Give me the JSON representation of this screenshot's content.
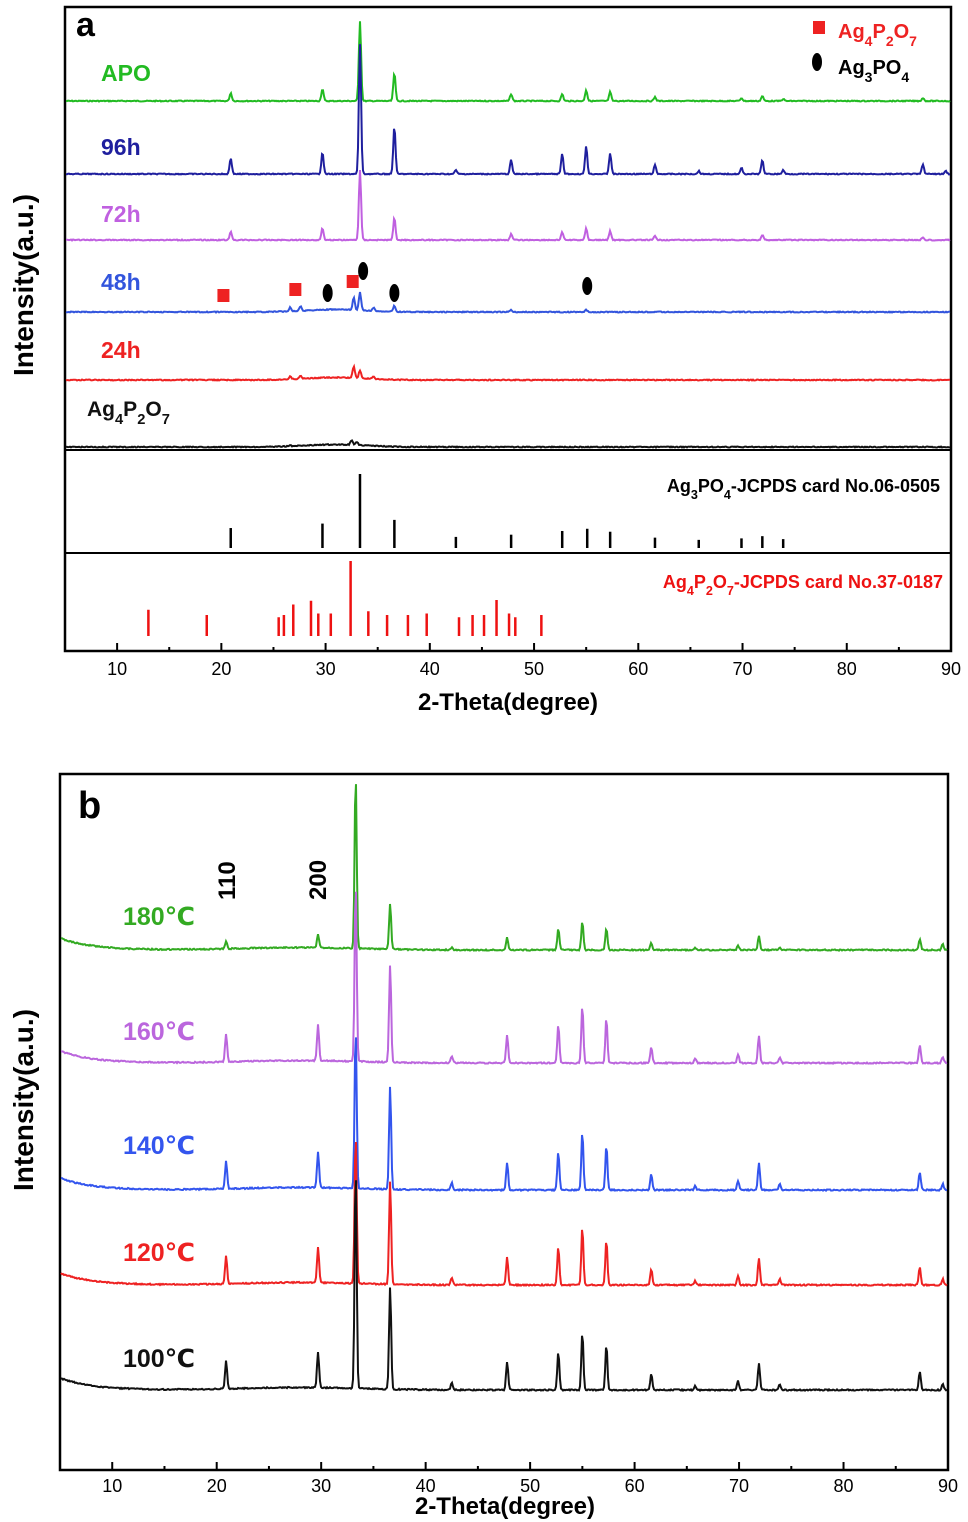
{
  "chart_data": [
    {
      "panel": "a",
      "type": "line",
      "xlabel": "2-Theta(degree)",
      "ylabel": "Intensity(a.u.)",
      "xlim": [
        5,
        90
      ],
      "xticks": [
        10,
        20,
        30,
        40,
        50,
        60,
        70,
        80,
        90
      ],
      "colors": {
        "APO": "#22bb22",
        "96h": "#1f1f9e",
        "72h": "#c060e0",
        "48h": "#3355dd",
        "24h": "#ee2222",
        "Ag4P2O7": "#111111",
        "ref_apo": "#000000",
        "ref_p2o7": "#ee1111"
      },
      "series": [
        {
          "name": "APO",
          "label_parts": [
            [
              "APO",
              ""
            ]
          ],
          "baseline": 0,
          "peaks": [
            [
              20.9,
              8
            ],
            [
              29.7,
              12
            ],
            [
              33.3,
              80
            ],
            [
              36.6,
              28
            ],
            [
              47.8,
              7
            ],
            [
              52.7,
              7
            ],
            [
              55.0,
              11
            ],
            [
              57.3,
              9
            ],
            [
              61.6,
              4
            ],
            [
              69.9,
              3
            ],
            [
              71.9,
              5
            ],
            [
              73.9,
              2
            ],
            [
              87.3,
              3
            ]
          ]
        },
        {
          "name": "96h",
          "label_parts": [
            [
              "96h",
              ""
            ]
          ],
          "baseline": 0,
          "peaks": [
            [
              20.9,
              16
            ],
            [
              29.7,
              22
            ],
            [
              33.3,
              130
            ],
            [
              36.6,
              48
            ],
            [
              42.5,
              4
            ],
            [
              47.8,
              14
            ],
            [
              52.7,
              20
            ],
            [
              55.0,
              28
            ],
            [
              57.3,
              21
            ],
            [
              61.6,
              9
            ],
            [
              65.8,
              3
            ],
            [
              69.9,
              6
            ],
            [
              71.9,
              14
            ],
            [
              73.9,
              4
            ],
            [
              87.3,
              10
            ],
            [
              89.5,
              3
            ]
          ]
        },
        {
          "name": "72h",
          "label_parts": [
            [
              "72h",
              ""
            ]
          ],
          "baseline": 0,
          "peaks": [
            [
              20.9,
              8
            ],
            [
              29.7,
              12
            ],
            [
              33.3,
              70
            ],
            [
              36.6,
              22
            ],
            [
              47.8,
              6
            ],
            [
              52.7,
              8
            ],
            [
              55.0,
              12
            ],
            [
              57.3,
              9
            ],
            [
              61.6,
              4
            ],
            [
              71.9,
              5
            ],
            [
              87.3,
              3
            ]
          ]
        },
        {
          "name": "48h",
          "label_parts": [
            [
              "48h",
              ""
            ]
          ],
          "baseline": 0,
          "peaks": [
            [
              26.6,
              4
            ],
            [
              27.6,
              5
            ],
            [
              32.7,
              12
            ],
            [
              33.3,
              18
            ],
            [
              34.6,
              3
            ],
            [
              36.6,
              6
            ],
            [
              47.8,
              2
            ],
            [
              55.0,
              2
            ]
          ]
        },
        {
          "name": "24h",
          "label_parts": [
            [
              "24h",
              ""
            ]
          ],
          "baseline": 0,
          "peaks": [
            [
              26.6,
              3
            ],
            [
              27.6,
              3
            ],
            [
              32.7,
              12
            ],
            [
              33.3,
              8
            ],
            [
              34.6,
              2
            ]
          ]
        },
        {
          "name": "Ag4P2O7",
          "label_parts": [
            [
              "Ag",
              ""
            ],
            [
              "4",
              "sub"
            ],
            [
              "P",
              ""
            ],
            [
              "2",
              "sub"
            ],
            [
              "O",
              ""
            ],
            [
              "7",
              "sub"
            ]
          ],
          "baseline": 0,
          "peaks": [
            [
              26.6,
              1
            ],
            [
              32.5,
              5
            ],
            [
              33.0,
              3
            ]
          ]
        }
      ],
      "legend": [
        {
          "marker": "square",
          "color": "#ee2222",
          "text_color": "#ee2222",
          "parts": [
            [
              "Ag",
              ""
            ],
            [
              "4",
              "sub"
            ],
            [
              "P",
              ""
            ],
            [
              "2",
              "sub"
            ],
            [
              "O",
              ""
            ],
            [
              "7",
              "sub"
            ]
          ]
        },
        {
          "marker": "ellipse",
          "color": "#000000",
          "text_color": "#000000",
          "parts": [
            [
              "Ag",
              ""
            ],
            [
              "3",
              "sub"
            ],
            [
              "PO",
              ""
            ],
            [
              "4",
              "sub"
            ]
          ]
        }
      ],
      "markers_48h": [
        {
          "x": 20.2,
          "type": "square"
        },
        {
          "x": 27.1,
          "type": "square"
        },
        {
          "x": 30.2,
          "type": "ellipse"
        },
        {
          "x": 32.6,
          "type": "square"
        },
        {
          "x": 33.6,
          "type": "ellipse"
        },
        {
          "x": 36.6,
          "type": "ellipse"
        },
        {
          "x": 55.1,
          "type": "ellipse"
        }
      ],
      "reference_apo": {
        "label_parts": [
          [
            "Ag",
            ""
          ],
          [
            "3",
            "sub"
          ],
          [
            "PO",
            ""
          ],
          [
            "4",
            "sub"
          ],
          [
            "-JCPDS card No.06-0505",
            ""
          ]
        ],
        "sticks": [
          [
            20.9,
            27
          ],
          [
            29.7,
            33
          ],
          [
            33.3,
            100
          ],
          [
            36.6,
            38
          ],
          [
            42.5,
            15
          ],
          [
            47.8,
            18
          ],
          [
            52.7,
            23
          ],
          [
            55.1,
            26
          ],
          [
            57.3,
            22
          ],
          [
            61.6,
            14
          ],
          [
            65.8,
            11
          ],
          [
            69.9,
            13
          ],
          [
            71.9,
            16
          ],
          [
            73.9,
            12
          ]
        ]
      },
      "reference_p2o7": {
        "label_parts": [
          [
            "Ag",
            ""
          ],
          [
            "4",
            "sub"
          ],
          [
            "P",
            ""
          ],
          [
            "2",
            "sub"
          ],
          [
            "O",
            ""
          ],
          [
            "7",
            "sub"
          ],
          [
            "-JCPDS card No.37-0187",
            ""
          ]
        ],
        "sticks": [
          [
            13.0,
            35
          ],
          [
            18.6,
            28
          ],
          [
            25.5,
            25
          ],
          [
            26.0,
            28
          ],
          [
            26.9,
            42
          ],
          [
            28.6,
            47
          ],
          [
            29.3,
            30
          ],
          [
            30.5,
            30
          ],
          [
            32.4,
            100
          ],
          [
            34.1,
            33
          ],
          [
            35.9,
            28
          ],
          [
            37.9,
            28
          ],
          [
            39.7,
            30
          ],
          [
            42.8,
            25
          ],
          [
            44.1,
            28
          ],
          [
            45.2,
            28
          ],
          [
            46.4,
            48
          ],
          [
            47.6,
            30
          ],
          [
            48.2,
            25
          ],
          [
            50.7,
            28
          ]
        ]
      }
    },
    {
      "panel": "b",
      "type": "line",
      "xlabel": "2-Theta(degree)",
      "ylabel": "Intensity(a.u.)",
      "xlim": [
        5,
        90
      ],
      "xticks": [
        10,
        20,
        30,
        40,
        50,
        60,
        70,
        80,
        90
      ],
      "annotations": [
        {
          "text": "110",
          "x": 21
        },
        {
          "text": "200",
          "x": 29.7
        }
      ],
      "series": [
        {
          "name": "180℃",
          "color": "#33aa22",
          "peaks": [
            [
              20.9,
              10
            ],
            [
              29.7,
              18
            ],
            [
              33.3,
              240
            ],
            [
              36.6,
              63
            ],
            [
              42.5,
              3
            ],
            [
              47.8,
              17
            ],
            [
              52.7,
              30
            ],
            [
              55.0,
              40
            ],
            [
              57.3,
              30
            ],
            [
              61.6,
              10
            ],
            [
              65.8,
              3
            ],
            [
              69.9,
              6
            ],
            [
              71.9,
              20
            ],
            [
              73.9,
              4
            ],
            [
              87.3,
              15
            ],
            [
              89.5,
              8
            ]
          ]
        },
        {
          "name": "160℃",
          "color": "#bb66dd",
          "peaks": [
            [
              20.9,
              28
            ],
            [
              29.7,
              36
            ],
            [
              33.3,
              180
            ],
            [
              36.6,
              98
            ],
            [
              42.5,
              7
            ],
            [
              47.8,
              28
            ],
            [
              52.7,
              38
            ],
            [
              55.0,
              58
            ],
            [
              57.3,
              45
            ],
            [
              61.6,
              16
            ],
            [
              65.8,
              4
            ],
            [
              69.9,
              9
            ],
            [
              71.9,
              27
            ],
            [
              73.9,
              6
            ],
            [
              87.3,
              18
            ],
            [
              89.5,
              6
            ]
          ]
        },
        {
          "name": "140℃",
          "color": "#3355ee",
          "peaks": [
            [
              20.9,
              28
            ],
            [
              29.7,
              36
            ],
            [
              33.3,
              160
            ],
            [
              36.6,
              103
            ],
            [
              42.5,
              7
            ],
            [
              47.8,
              28
            ],
            [
              52.7,
              38
            ],
            [
              55.0,
              58
            ],
            [
              57.3,
              45
            ],
            [
              61.6,
              16
            ],
            [
              65.8,
              4
            ],
            [
              69.9,
              9
            ],
            [
              71.9,
              27
            ],
            [
              73.9,
              6
            ],
            [
              87.3,
              18
            ],
            [
              89.5,
              6
            ]
          ]
        },
        {
          "name": "120℃",
          "color": "#ee2222",
          "peaks": [
            [
              20.9,
              28
            ],
            [
              29.7,
              36
            ],
            [
              33.3,
              150
            ],
            [
              36.6,
              103
            ],
            [
              42.5,
              7
            ],
            [
              47.8,
              28
            ],
            [
              52.7,
              38
            ],
            [
              55.0,
              58
            ],
            [
              57.3,
              45
            ],
            [
              61.6,
              16
            ],
            [
              65.8,
              4
            ],
            [
              69.9,
              9
            ],
            [
              71.9,
              27
            ],
            [
              73.9,
              6
            ],
            [
              87.3,
              18
            ],
            [
              89.5,
              6
            ]
          ]
        },
        {
          "name": "100℃",
          "color": "#111111",
          "peaks": [
            [
              20.9,
              28
            ],
            [
              29.7,
              36
            ],
            [
              33.3,
              220
            ],
            [
              36.6,
              103
            ],
            [
              42.5,
              7
            ],
            [
              47.8,
              28
            ],
            [
              52.7,
              38
            ],
            [
              55.0,
              58
            ],
            [
              57.3,
              45
            ],
            [
              61.6,
              16
            ],
            [
              65.8,
              4
            ],
            [
              69.9,
              9
            ],
            [
              71.9,
              27
            ],
            [
              73.9,
              6
            ],
            [
              87.3,
              18
            ],
            [
              89.5,
              6
            ]
          ]
        }
      ]
    }
  ]
}
